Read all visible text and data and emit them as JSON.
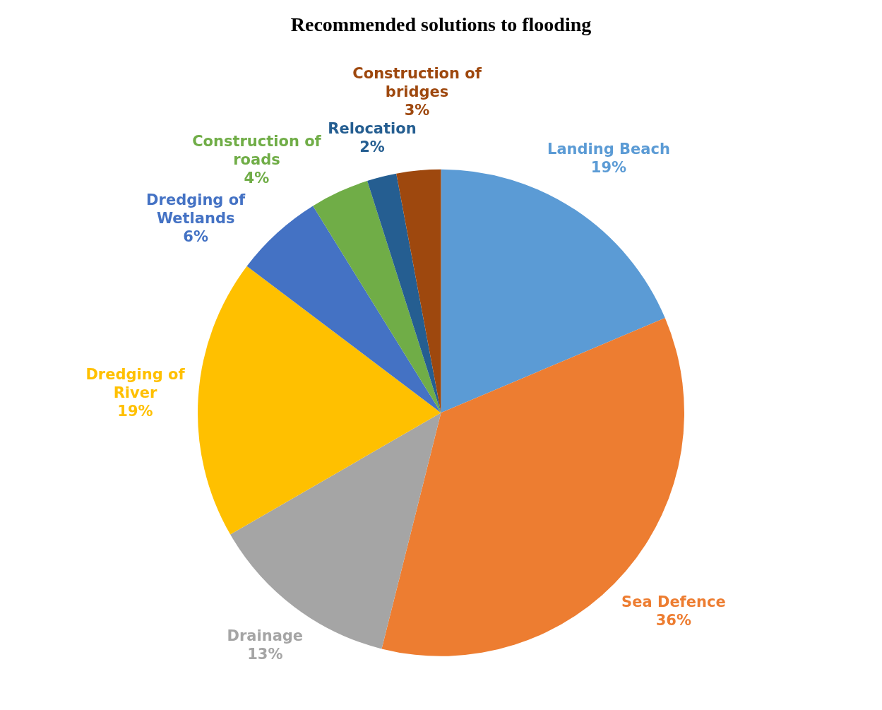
{
  "chart_data": {
    "type": "pie",
    "title": "Recommended solutions to flooding",
    "categories": [
      "Landing Beach",
      "Sea Defence",
      "Drainage",
      "Dredging of River",
      "Dredging of Wetlands",
      "Construction of roads",
      "Relocation",
      "Construction of bridges"
    ],
    "values": [
      19,
      36,
      13,
      19,
      6,
      4,
      2,
      3
    ],
    "value_labels": [
      "19%",
      "36%",
      "13%",
      "19%",
      "6%",
      "4%",
      "2%",
      "3%"
    ],
    "colors": [
      "#5b9bd5",
      "#ed7d31",
      "#a5a5a5",
      "#ffc000",
      "#4472c4",
      "#70ad47",
      "#255e91",
      "#9e480e"
    ],
    "legend": false
  }
}
